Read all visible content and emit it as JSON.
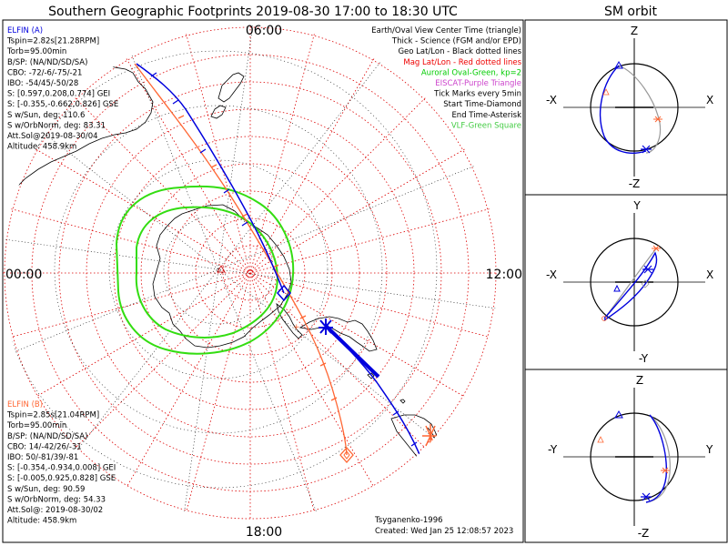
{
  "header": {
    "title": "Southern Geographic Footprints 2019-08-30 17:00 to 18:30 UTC",
    "orbit_title": "SM orbit"
  },
  "clock_labels": {
    "top": "06:00",
    "left": "00:00",
    "right": "12:00",
    "bottom": "18:00"
  },
  "legend": [
    {
      "text": "Earth/Oval View Center Time (triangle)",
      "color": "#000000"
    },
    {
      "text": "Thick - Science (FGM and/or EPD)",
      "color": "#000000"
    },
    {
      "text": "Geo Lat/Lon - Black dotted lines",
      "color": "#000000"
    },
    {
      "text": "Mag Lat/Lon - Red dotted lines",
      "color": "#ee0000"
    },
    {
      "text": "Auroral Oval-Green, kp=2",
      "color": "#00cc00"
    },
    {
      "text": "EISCAT-Purple Triangle",
      "color": "#cc44cc"
    },
    {
      "text": "Tick Marks every 5min",
      "color": "#000000"
    },
    {
      "text": "Start Time-Diamond",
      "color": "#000000"
    },
    {
      "text": "End Time-Asterisk",
      "color": "#000000"
    },
    {
      "text": "VLF-Green Square",
      "color": "#44cc44"
    }
  ],
  "elfin_a": {
    "title": "ELFIN (A)",
    "color": "#0000dd",
    "lines": [
      "Tspin=2.82s[21.28RPM]",
      "Torb=95.00min",
      "B/SP: (NA/ND/SD/SA)",
      "CBO: -72/-6/-75/-21",
      "IBO: -54/45/-50/28",
      "S: [0.597,0.208,0.774] GEI",
      "S: [-0.355,-0.662,0.826] GSE",
      "S w/Sun, deg: 110.6",
      "S w/OrbNorm, deg: 83.31",
      "Att.Sol@2019-08-30/04",
      "Altitude: 458.9km"
    ]
  },
  "elfin_b": {
    "title": "ELFIN (B)",
    "color": "#ff6633",
    "lines": [
      "Tspin=2.85s[21.04RPM]",
      "Torb=95.00min",
      "B/SP: (NA/ND/SD/SA)",
      "CBO: 14/-42/26/-31",
      "IBO: 50/-81/39/-81",
      "S: [-0.354,-0.934,0.008] GEI",
      "S: [-0.005,0.925,0.828] GSE",
      "S w/Sun, deg: 90.59",
      "S w/OrbNorm, deg: 54.33",
      "Att.Sol@: 2019-08-30/02",
      "Altitude: 458.9km"
    ]
  },
  "footer": {
    "credit": "Tsyganenko-1996",
    "created": "Created: Wed Jan 25 12:08:57 2023"
  },
  "orbit_panels": [
    {
      "top": "Z",
      "bottom": "-Z",
      "left": "-X",
      "right": "X"
    },
    {
      "top": "Y",
      "bottom": "-Y",
      "left": "-X",
      "right": "X"
    },
    {
      "top": "Z",
      "bottom": "-Z",
      "left": "-Y",
      "right": "Y"
    }
  ],
  "colors": {
    "elfin_a": "#0000dd",
    "elfin_b": "#ff6633",
    "mag_grid": "#dd0000",
    "auroral_oval": "#33dd11",
    "coast": "#000000",
    "orbit_gray": "#999999"
  }
}
